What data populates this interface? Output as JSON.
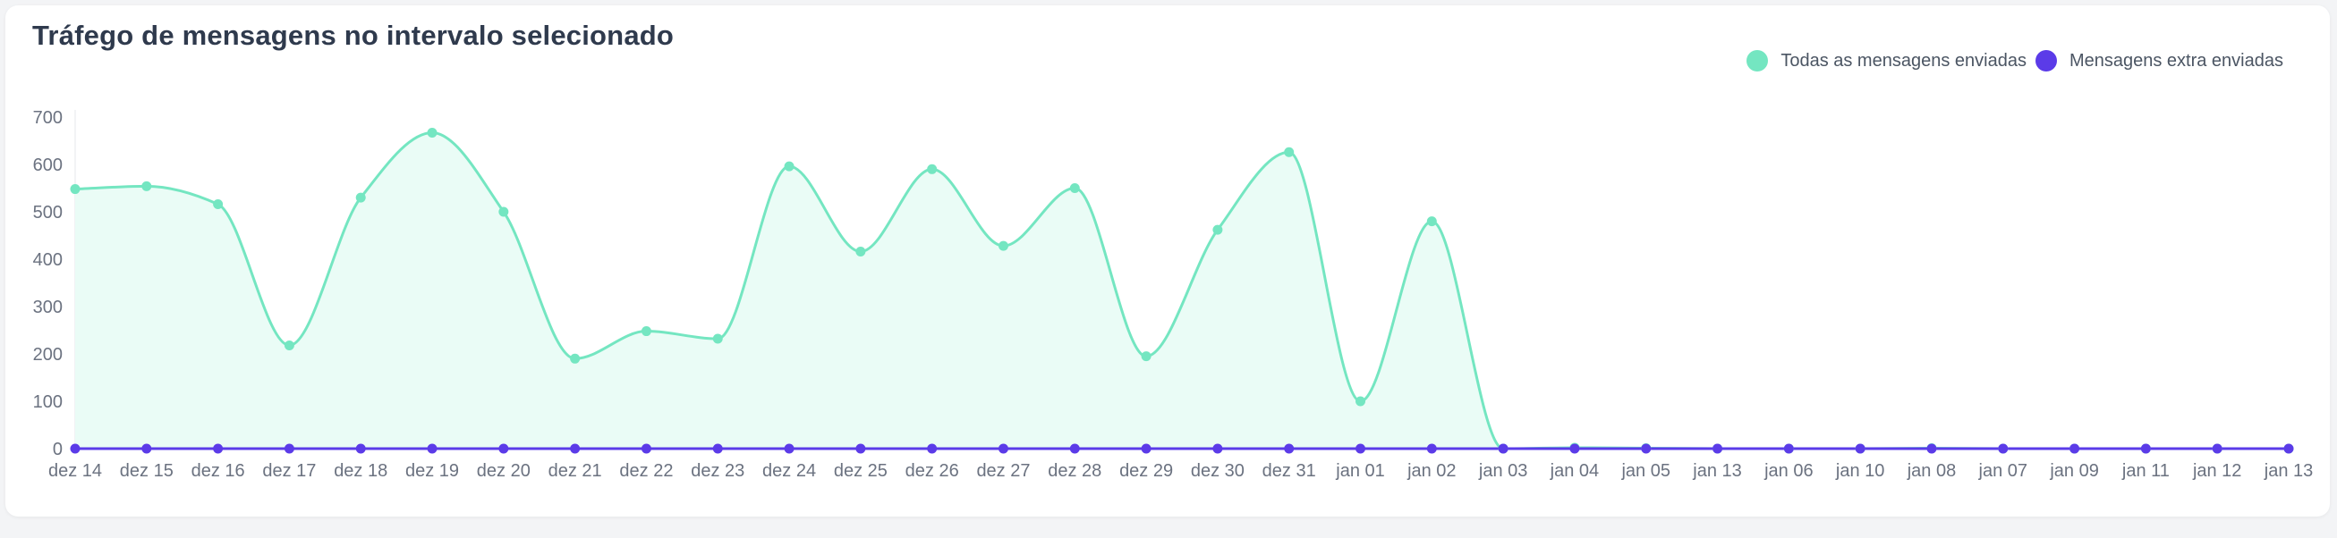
{
  "colors": {
    "series_all": "#74e6c1",
    "series_extra": "#5b3be8",
    "area_fill": "#eafcf6",
    "axis": "#e5e7eb"
  },
  "chart_data": {
    "type": "area",
    "title": "Tráfego de mensagens no intervalo selecionado",
    "legend_position": "top-right",
    "ylim": [
      0,
      700
    ],
    "yticks": [
      0,
      100,
      200,
      300,
      400,
      500,
      600,
      700
    ],
    "categories": [
      "dez 14",
      "dez 15",
      "dez 16",
      "dez 17",
      "dez 18",
      "dez 19",
      "dez 20",
      "dez 21",
      "dez 22",
      "dez 23",
      "dez 24",
      "dez 25",
      "dez 26",
      "dez 27",
      "dez 28",
      "dez 29",
      "dez 30",
      "dez 31",
      "jan 01",
      "jan 02",
      "jan 03",
      "jan 04",
      "jan 05",
      "jan 13",
      "jan 06",
      "jan 10",
      "jan 08",
      "jan 07",
      "jan 09",
      "jan 11",
      "jan 12",
      "jan 13"
    ],
    "series": [
      {
        "name": "Todas as mensagens enviadas",
        "values": [
          548,
          554,
          516,
          218,
          530,
          667,
          500,
          190,
          248,
          232,
          596,
          416,
          590,
          428,
          550,
          195,
          462,
          626,
          100,
          480,
          0,
          2,
          1,
          0,
          0,
          0,
          1,
          0,
          0,
          0,
          0,
          0
        ]
      },
      {
        "name": "Mensagens extra enviadas",
        "values": [
          0,
          0,
          0,
          0,
          0,
          0,
          0,
          0,
          0,
          0,
          0,
          0,
          0,
          0,
          0,
          0,
          0,
          0,
          0,
          0,
          0,
          0,
          0,
          0,
          0,
          0,
          0,
          0,
          0,
          0,
          0,
          0
        ]
      }
    ]
  }
}
